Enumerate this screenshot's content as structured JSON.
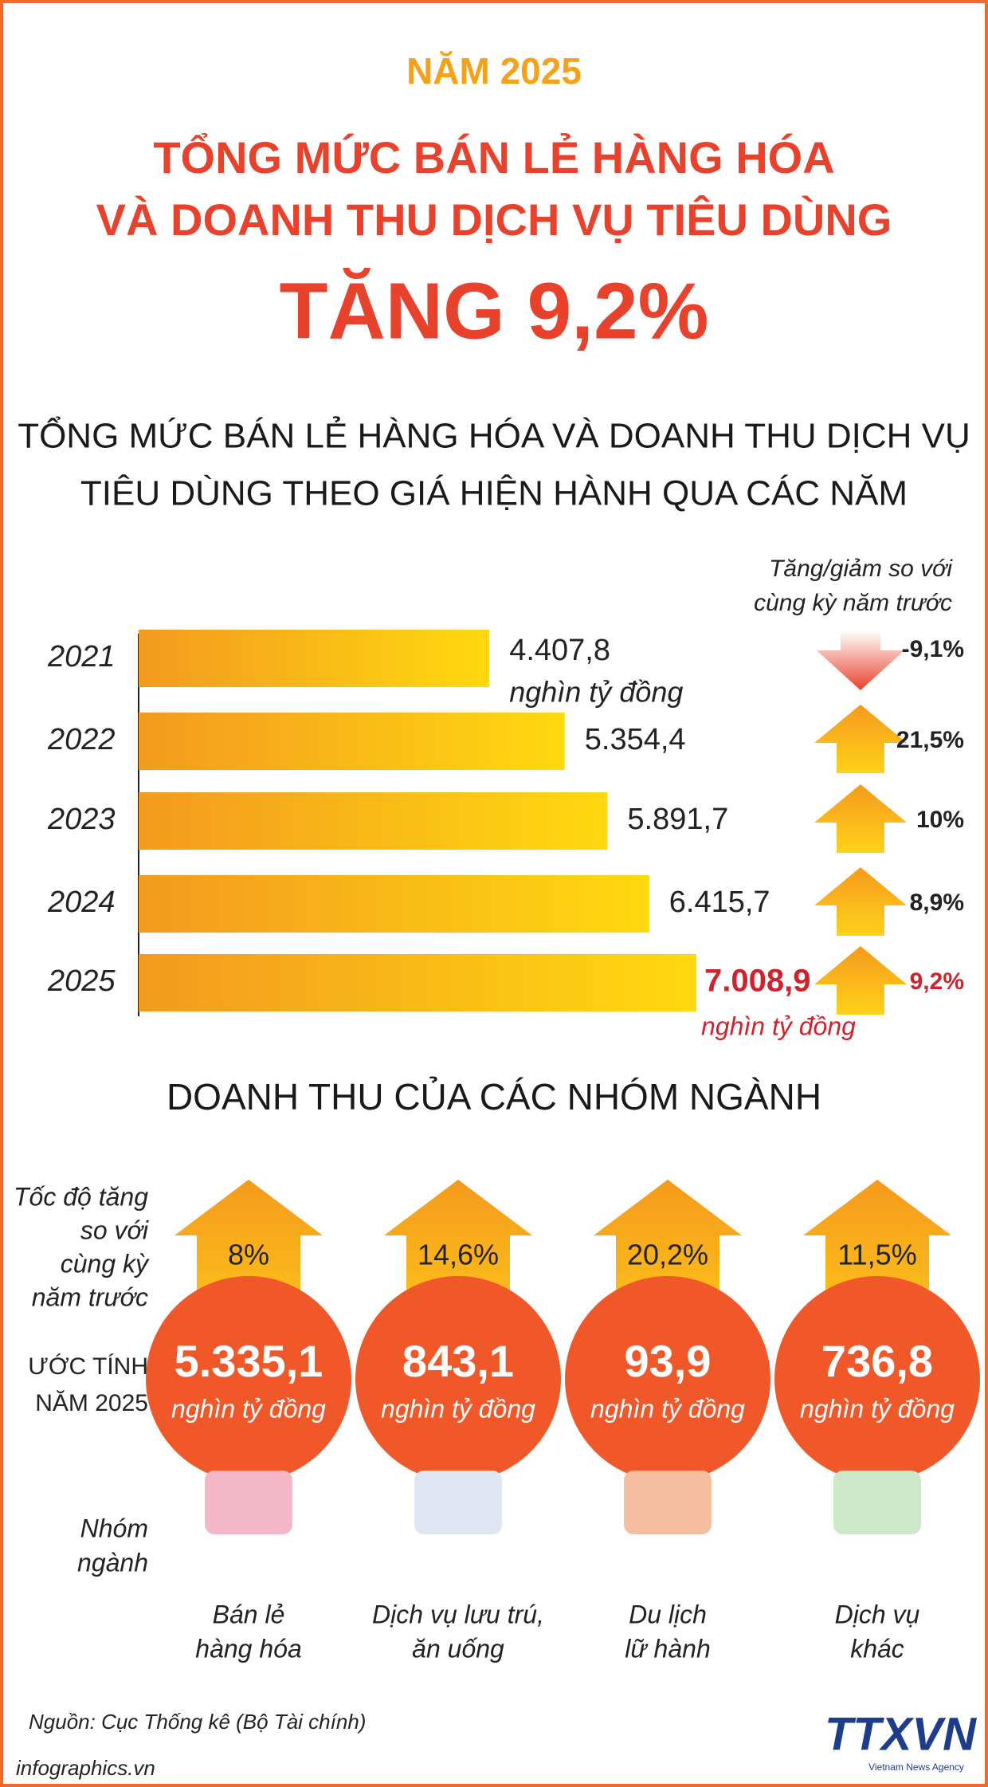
{
  "header": {
    "year": "NĂM 2025",
    "title_lines": [
      "TỔNG MỨC BÁN LẺ HÀNG HÓA",
      "VÀ DOANH THU DỊCH VỤ TIÊU DÙNG"
    ],
    "headline": "TĂNG 9,2%"
  },
  "chart_data": {
    "type": "bar",
    "orientation": "horizontal",
    "title_lines": [
      "TỔNG MỨC BÁN LẺ HÀNG HÓA VÀ DOANH THU DỊCH VỤ",
      "TIÊU DÙNG THEO GIÁ HIỆN HÀNH QUA CÁC NĂM"
    ],
    "categories": [
      "2021",
      "2022",
      "2023",
      "2024",
      "2025"
    ],
    "values": [
      4407.8,
      5354.4,
      5891.7,
      6415.7,
      7008.9
    ],
    "value_labels": [
      "4.407,8",
      "5.354,4",
      "5.891,7",
      "6.415,7",
      "7.008,9"
    ],
    "unit": "nghìn tỷ đồng",
    "highlight_color": "#d0222c",
    "change_title_lines": [
      "Tăng/giảm so với",
      "cùng kỳ năm trước"
    ],
    "change": {
      "values": [
        -9.1,
        21.5,
        10,
        8.9,
        9.2
      ],
      "value_labels": [
        "-9,1%",
        "21,5%",
        "10%",
        "8,9%",
        "9,2%"
      ]
    }
  },
  "groups": {
    "title": "DOANH THU CỦA CÁC NHÓM NGÀNH",
    "row_labels": {
      "growth": [
        "Tốc độ tăng",
        "so với",
        "cùng kỳ",
        "năm trước"
      ],
      "estimate": [
        "ƯỚC TÍNH",
        "NĂM 2025"
      ],
      "group": [
        "Nhóm",
        "ngành"
      ]
    },
    "items": [
      {
        "growth": "8%",
        "estimate": "5.335,1",
        "unit": "nghìn tỷ đồng",
        "name": [
          "Bán lẻ",
          "hàng hóa"
        ]
      },
      {
        "growth": "14,6%",
        "estimate": "843,1",
        "unit": "nghìn tỷ đồng",
        "name": [
          "Dịch vụ lưu trú,",
          "ăn uống"
        ]
      },
      {
        "growth": "20,2%",
        "estimate": "93,9",
        "unit": "nghìn tỷ đồng",
        "name": [
          "Du lịch",
          "lữ hành"
        ]
      },
      {
        "growth": "11,5%",
        "estimate": "736,8",
        "unit": "nghìn tỷ đồng",
        "name": [
          "Dịch vụ",
          "khác"
        ]
      }
    ]
  },
  "footer": {
    "source": "Nguồn: Cục Thống kê (Bộ Tài chính)",
    "site": "infographics.vn",
    "logo": "TTXVN",
    "logo_sub": "Vietnam News Agency"
  }
}
